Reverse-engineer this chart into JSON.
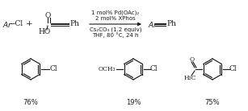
{
  "background_color": "#ffffff",
  "fig_width": 3.07,
  "fig_height": 1.38,
  "dpi": 100,
  "reaction_line1": "1 mol% Pd(OAc)₂",
  "reaction_line2": "2 mol% XPhos",
  "reaction_line3": "Cs₂CO₃ (1.2 equiv)",
  "reaction_line4": "THF, 80 °C, 24 h",
  "yields": [
    "76%",
    "19%",
    "75%"
  ],
  "text_color": "#1a1a1a",
  "font_size_main": 6.5,
  "font_size_small": 5.5,
  "font_size_cond": 5.0,
  "font_size_yield": 6.0
}
